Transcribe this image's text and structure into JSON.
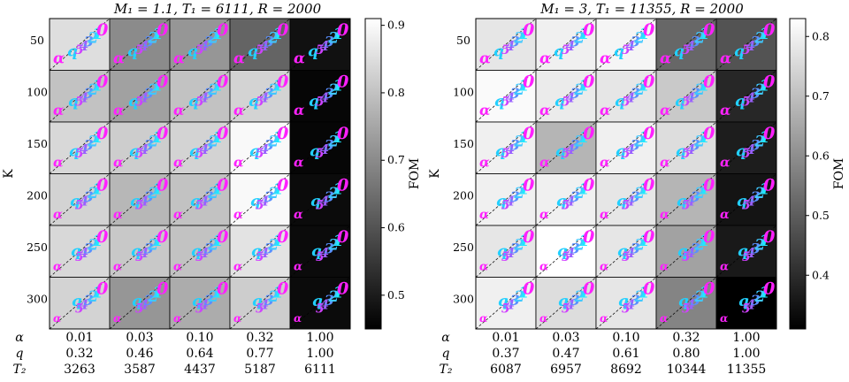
{
  "chart_data": [
    {
      "type": "heatmap",
      "title": "M₁ = 1.1, T₁ = 6111, R = 2000",
      "ylabel": "K",
      "colorbar_label": "FOM",
      "colorbar_ticks": [
        "0.5",
        "0.6",
        "0.7",
        "0.8",
        "0.9"
      ],
      "colorbar_tick_values": [
        0.5,
        0.6,
        0.7,
        0.8,
        0.9
      ],
      "colorbar_range": [
        0.45,
        0.91
      ],
      "rows": [
        "50",
        "100",
        "150",
        "200",
        "250",
        "300"
      ],
      "col_row_labels": [
        "α",
        "q",
        "T₂"
      ],
      "alpha": [
        "0.01",
        "0.03",
        "0.10",
        "0.32",
        "1.00"
      ],
      "q": [
        "0.32",
        "0.46",
        "0.64",
        "0.77",
        "1.00"
      ],
      "T2": [
        "3263",
        "3587",
        "4437",
        "5187",
        "6111"
      ],
      "fom": [
        [
          0.85,
          0.7,
          0.72,
          0.63,
          0.48
        ],
        [
          0.8,
          0.74,
          0.8,
          0.83,
          0.46
        ],
        [
          0.84,
          0.82,
          0.83,
          0.9,
          0.46
        ],
        [
          0.83,
          0.78,
          0.8,
          0.9,
          0.47
        ],
        [
          0.84,
          0.81,
          0.8,
          0.86,
          0.47
        ],
        [
          0.83,
          0.72,
          0.76,
          0.82,
          0.47
        ]
      ]
    },
    {
      "type": "heatmap",
      "title": "M₁ = 3, T₁ = 11355, R = 2000",
      "ylabel": "K",
      "colorbar_label": "FOM",
      "colorbar_ticks": [
        "0.4",
        "0.5",
        "0.6",
        "0.7",
        "0.8"
      ],
      "colorbar_tick_values": [
        0.4,
        0.5,
        0.6,
        0.7,
        0.8
      ],
      "colorbar_range": [
        0.31,
        0.83
      ],
      "rows": [
        "50",
        "100",
        "150",
        "200",
        "250",
        "300"
      ],
      "col_row_labels": [
        "α",
        "q",
        "T₂"
      ],
      "alpha": [
        "0.01",
        "0.03",
        "0.10",
        "0.32",
        "1.00"
      ],
      "q": [
        "0.37",
        "0.47",
        "0.61",
        "0.80",
        "1.00"
      ],
      "T2": [
        "6087",
        "6957",
        "8692",
        "10344",
        "11355"
      ],
      "fom": [
        [
          0.78,
          0.8,
          0.81,
          0.52,
          0.48
        ],
        [
          0.82,
          0.79,
          0.78,
          0.72,
          0.39
        ],
        [
          0.8,
          0.68,
          0.8,
          0.76,
          0.37
        ],
        [
          0.8,
          0.8,
          0.78,
          0.68,
          0.35
        ],
        [
          0.78,
          0.83,
          0.78,
          0.64,
          0.36
        ],
        [
          0.8,
          0.76,
          0.78,
          0.58,
          0.31
        ]
      ]
    }
  ],
  "glyphs": {
    "alpha": "α",
    "q": "q",
    "numbers": [
      "5",
      "4",
      "3",
      "2",
      "1",
      "0"
    ]
  },
  "colors": {
    "alpha_glyph": "#ff22ff",
    "q_glyph": "#22d0ff",
    "digit_glyphs": [
      "#d040ff",
      "#9a60ff",
      "#5a90ff",
      "#40c8ff",
      "#20e8ff",
      "#ff20ff"
    ]
  }
}
